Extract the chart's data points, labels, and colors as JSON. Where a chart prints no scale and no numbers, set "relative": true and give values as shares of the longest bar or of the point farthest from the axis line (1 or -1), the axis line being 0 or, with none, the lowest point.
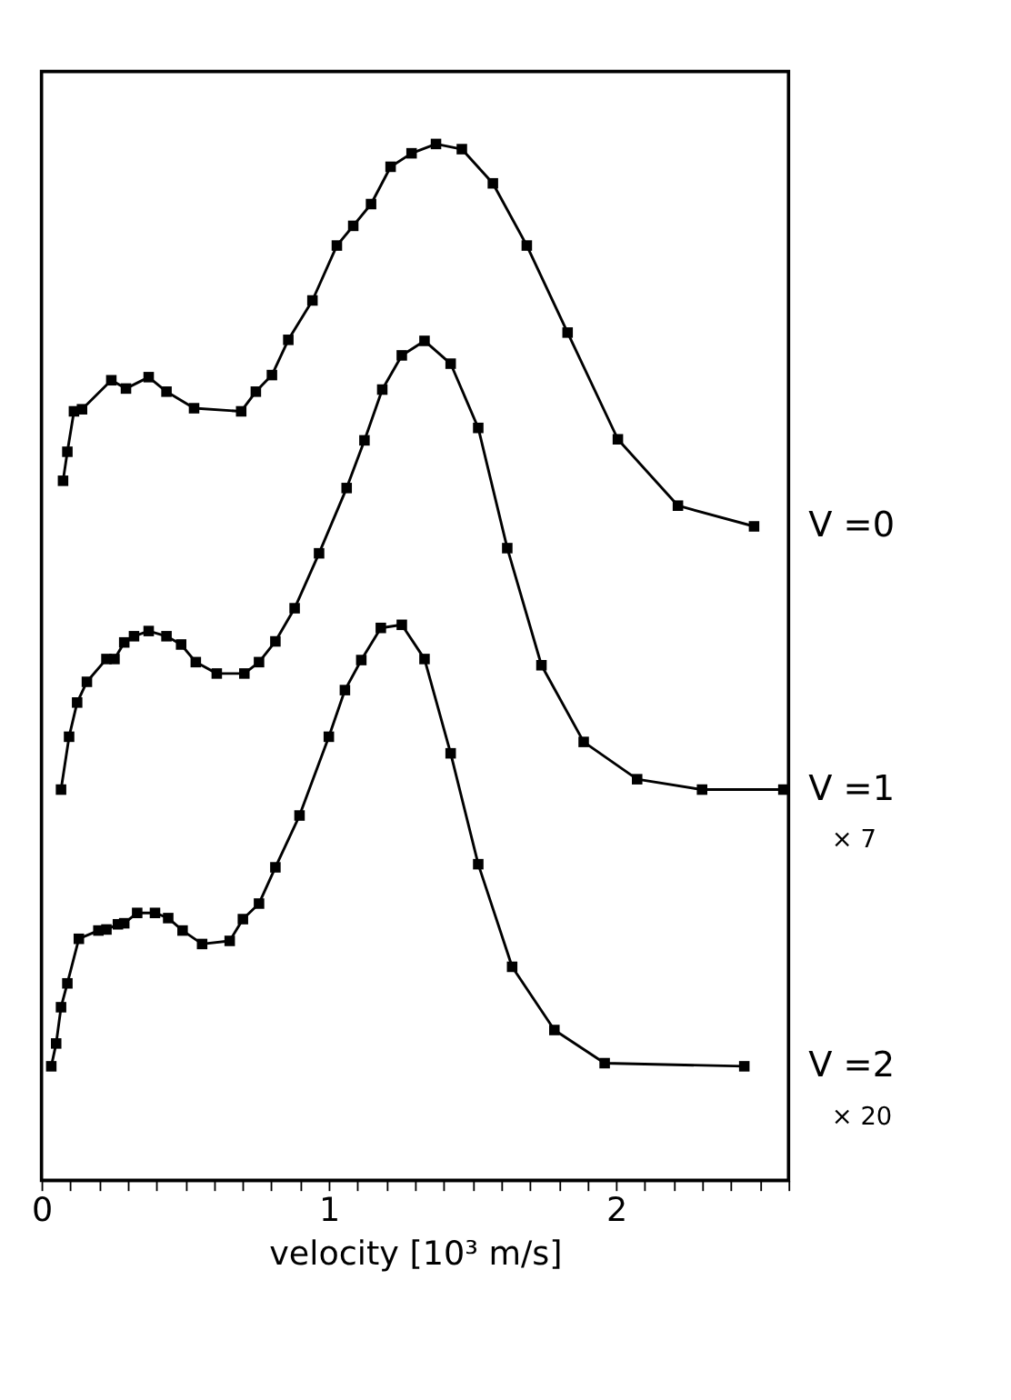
{
  "chart_data": {
    "type": "line",
    "relative": true,
    "xlabel": "velocity [10³ m/s]",
    "xlim": [
      0,
      2.6
    ],
    "xticks": [
      0,
      {
        "value": 0.1,
        "label": null
      },
      {
        "value": 0.2,
        "label": null
      },
      {
        "value": 0.3,
        "label": null
      },
      {
        "value": 0.4,
        "label": null
      },
      {
        "value": 0.5,
        "label": null
      },
      {
        "value": 0.6,
        "label": null
      },
      {
        "value": 0.7,
        "label": null
      },
      {
        "value": 0.8,
        "label": null
      },
      {
        "value": 0.9,
        "label": null
      },
      1,
      {
        "value": 1.1,
        "label": null
      },
      {
        "value": 1.2,
        "label": null
      },
      {
        "value": 1.3,
        "label": null
      },
      {
        "value": 1.4,
        "label": null
      },
      {
        "value": 1.5,
        "label": null
      },
      {
        "value": 1.6,
        "label": null
      },
      {
        "value": 1.7,
        "label": null
      },
      {
        "value": 1.8,
        "label": null
      },
      {
        "value": 1.9,
        "label": null
      },
      2,
      {
        "value": 2.1,
        "label": null
      },
      {
        "value": 2.2,
        "label": null
      },
      {
        "value": 2.3,
        "label": null
      },
      {
        "value": 2.4,
        "label": null
      },
      {
        "value": 2.5,
        "label": null
      },
      {
        "value": 2.6,
        "label": null
      }
    ],
    "tick_labels": "x",
    "grid": false,
    "legend": "right",
    "marker": "square",
    "line_style": "solid",
    "series": [
      {
        "name": "V =0",
        "color": "#000000",
        "x": [
          0.075,
          0.09,
          0.113,
          0.141,
          0.243,
          0.294,
          0.373,
          0.435,
          0.531,
          0.695,
          0.746,
          0.802,
          0.859,
          0.943,
          1.028,
          1.085,
          1.147,
          1.215,
          1.288,
          1.373,
          1.463,
          1.571,
          1.689,
          1.831,
          2.006,
          2.215,
          2.48
        ],
        "values": [
          0.675,
          0.703,
          0.742,
          0.744,
          0.772,
          0.764,
          0.775,
          0.761,
          0.745,
          0.742,
          0.761,
          0.777,
          0.811,
          0.849,
          0.902,
          0.921,
          0.942,
          0.978,
          0.991,
          1.0,
          0.995,
          0.962,
          0.902,
          0.818,
          0.715,
          0.651,
          0.631
        ]
      },
      {
        "name": "V =1",
        "color": "#000000",
        "x": [
          0.068,
          0.096,
          0.124,
          0.158,
          0.226,
          0.254,
          0.288,
          0.322,
          0.373,
          0.435,
          0.486,
          0.537,
          0.61,
          0.706,
          0.757,
          0.814,
          0.881,
          0.966,
          1.062,
          1.124,
          1.186,
          1.254,
          1.333,
          1.424,
          1.52,
          1.621,
          1.74,
          1.887,
          2.073,
          2.299,
          2.582
        ],
        "values": [
          0.377,
          0.428,
          0.461,
          0.481,
          0.503,
          0.503,
          0.519,
          0.525,
          0.53,
          0.525,
          0.517,
          0.5,
          0.489,
          0.489,
          0.5,
          0.52,
          0.552,
          0.605,
          0.668,
          0.714,
          0.763,
          0.796,
          0.81,
          0.788,
          0.726,
          0.61,
          0.497,
          0.423,
          0.387,
          0.377,
          0.377
        ]
      },
      {
        "name": "V =2",
        "color": "#000000",
        "x": [
          0.034,
          0.051,
          0.068,
          0.09,
          0.13,
          0.198,
          0.226,
          0.266,
          0.288,
          0.333,
          0.395,
          0.441,
          0.491,
          0.559,
          0.655,
          0.701,
          0.757,
          0.814,
          0.898,
          1.0,
          1.056,
          1.113,
          1.181,
          1.254,
          1.333,
          1.424,
          1.52,
          1.638,
          1.785,
          1.96,
          2.446
        ],
        "values": [
          0.11,
          0.132,
          0.167,
          0.19,
          0.233,
          0.241,
          0.242,
          0.247,
          0.248,
          0.258,
          0.258,
          0.253,
          0.241,
          0.228,
          0.231,
          0.252,
          0.267,
          0.302,
          0.352,
          0.428,
          0.473,
          0.502,
          0.533,
          0.536,
          0.503,
          0.412,
          0.305,
          0.206,
          0.145,
          0.113,
          0.11
        ]
      }
    ],
    "annotations": [
      "× 7",
      "× 20"
    ]
  }
}
